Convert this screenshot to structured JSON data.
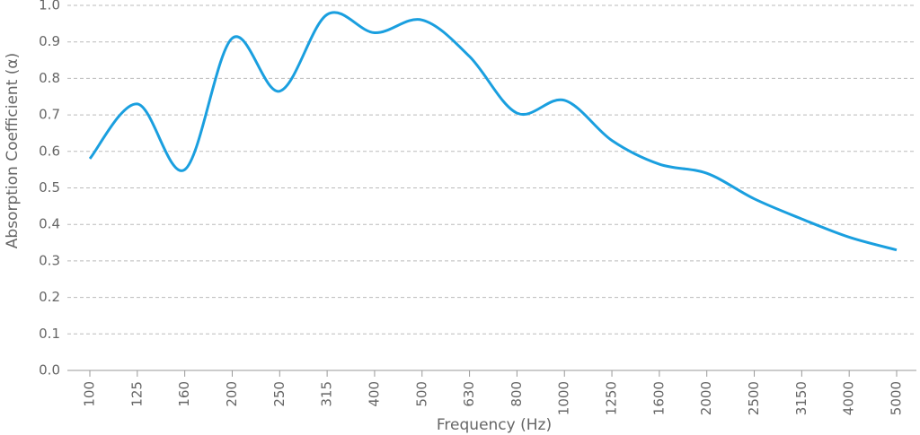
{
  "chart_data": {
    "type": "line",
    "y_label": "Absorption Coefficient (α)",
    "x_label": "Frequency (Hz)",
    "categories": [
      "100",
      "125",
      "160",
      "200",
      "250",
      "315",
      "400",
      "500",
      "630",
      "800",
      "1000",
      "1250",
      "1600",
      "2000",
      "2500",
      "3150",
      "4000",
      "5000"
    ],
    "values": [
      0.58,
      0.73,
      0.55,
      0.91,
      0.765,
      0.975,
      0.925,
      0.96,
      0.86,
      0.705,
      0.74,
      0.63,
      0.565,
      0.54,
      0.47,
      0.415,
      0.365,
      0.33
    ],
    "color": "#1a9fdf",
    "ylim": [
      0,
      1
    ],
    "yticks": [
      {
        "value": 0,
        "label": "0.0"
      },
      0.1,
      0.2,
      0.3,
      0.4,
      0.5,
      0.6,
      0.7,
      0.8,
      0.9,
      {
        "value": 1,
        "label": "1.0"
      }
    ],
    "grid": true
  }
}
